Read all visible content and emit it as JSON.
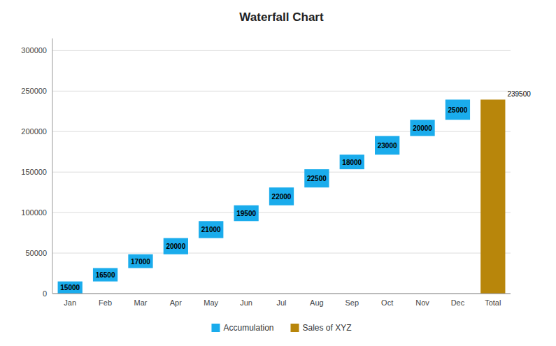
{
  "chart_data": {
    "type": "waterfall",
    "title": "Waterfall Chart",
    "categories": [
      "Jan",
      "Feb",
      "Mar",
      "Apr",
      "May",
      "Jun",
      "Jul",
      "Aug",
      "Sep",
      "Oct",
      "Nov",
      "Dec",
      "Total"
    ],
    "series": [
      {
        "name": "Accumulation",
        "type": "waterfall",
        "color": "#1AACEC",
        "values": [
          15000,
          16500,
          17000,
          20000,
          21000,
          19500,
          22000,
          22500,
          18000,
          23000,
          20000,
          25000,
          null
        ]
      },
      {
        "name": "Sales of XYZ",
        "type": "bar",
        "color": "#B8860B",
        "values": [
          null,
          null,
          null,
          null,
          null,
          null,
          null,
          null,
          null,
          null,
          null,
          null,
          239500
        ]
      }
    ],
    "ylim": [
      0,
      315000
    ],
    "yticks": [
      0,
      50000,
      100000,
      150000,
      200000,
      250000,
      300000
    ],
    "grid": true,
    "legend": "bottom",
    "data_labels": true
  }
}
